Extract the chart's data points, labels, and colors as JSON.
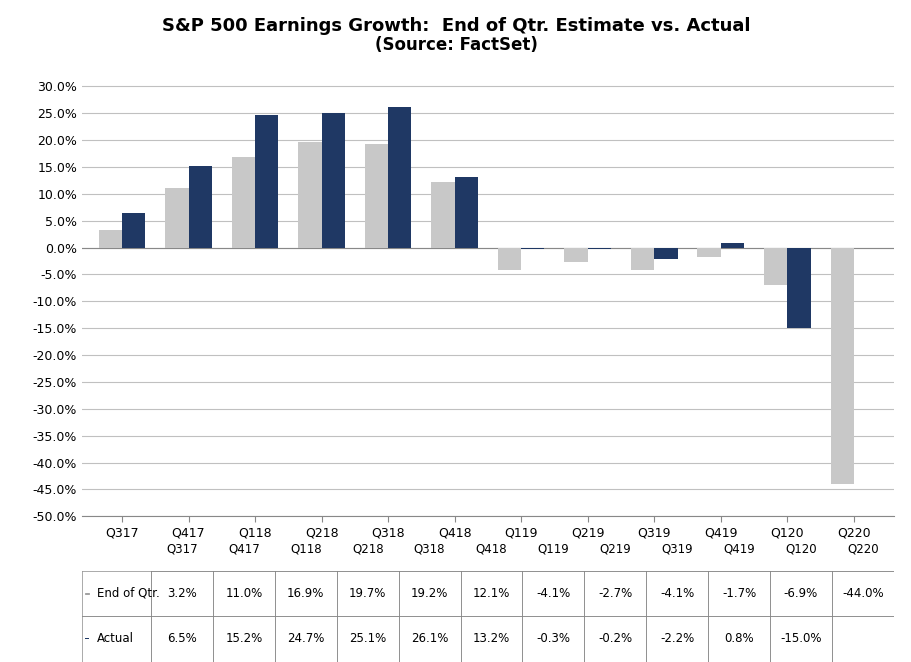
{
  "title": "S&P 500 Earnings Growth:  End of Qtr. Estimate vs. Actual",
  "subtitle": "(Source: FactSet)",
  "categories": [
    "Q317",
    "Q417",
    "Q118",
    "Q218",
    "Q318",
    "Q418",
    "Q119",
    "Q219",
    "Q319",
    "Q419",
    "Q120",
    "Q220"
  ],
  "end_of_qtr": [
    3.2,
    11.0,
    16.9,
    19.7,
    19.2,
    12.1,
    -4.1,
    -2.7,
    -4.1,
    -1.7,
    -6.9,
    -44.0
  ],
  "actual": [
    6.5,
    15.2,
    24.7,
    25.1,
    26.1,
    13.2,
    -0.3,
    -0.2,
    -2.2,
    0.8,
    -15.0,
    null
  ],
  "end_of_qtr_color": "#c8c8c8",
  "actual_color": "#1f3864",
  "background_color": "#ffffff",
  "grid_color": "#c0c0c0",
  "ylim_min": -50.0,
  "ylim_max": 32.5,
  "yticks": [
    -50.0,
    -45.0,
    -40.0,
    -35.0,
    -30.0,
    -25.0,
    -20.0,
    -15.0,
    -10.0,
    -5.0,
    0.0,
    5.0,
    10.0,
    15.0,
    20.0,
    25.0,
    30.0
  ],
  "end_of_qtr_str": [
    "3.2%",
    "11.0%",
    "16.9%",
    "19.7%",
    "19.2%",
    "12.1%",
    "-4.1%",
    "-2.7%",
    "-4.1%",
    "-1.7%",
    "-6.9%",
    "-44.0%"
  ],
  "actual_str": [
    "6.5%",
    "15.2%",
    "24.7%",
    "25.1%",
    "26.1%",
    "13.2%",
    "-0.3%",
    "-0.2%",
    "-2.2%",
    "0.8%",
    "-15.0%",
    ""
  ],
  "bar_width": 0.35,
  "title_fontsize": 13,
  "tick_fontsize": 9,
  "table_fontsize": 8.5
}
